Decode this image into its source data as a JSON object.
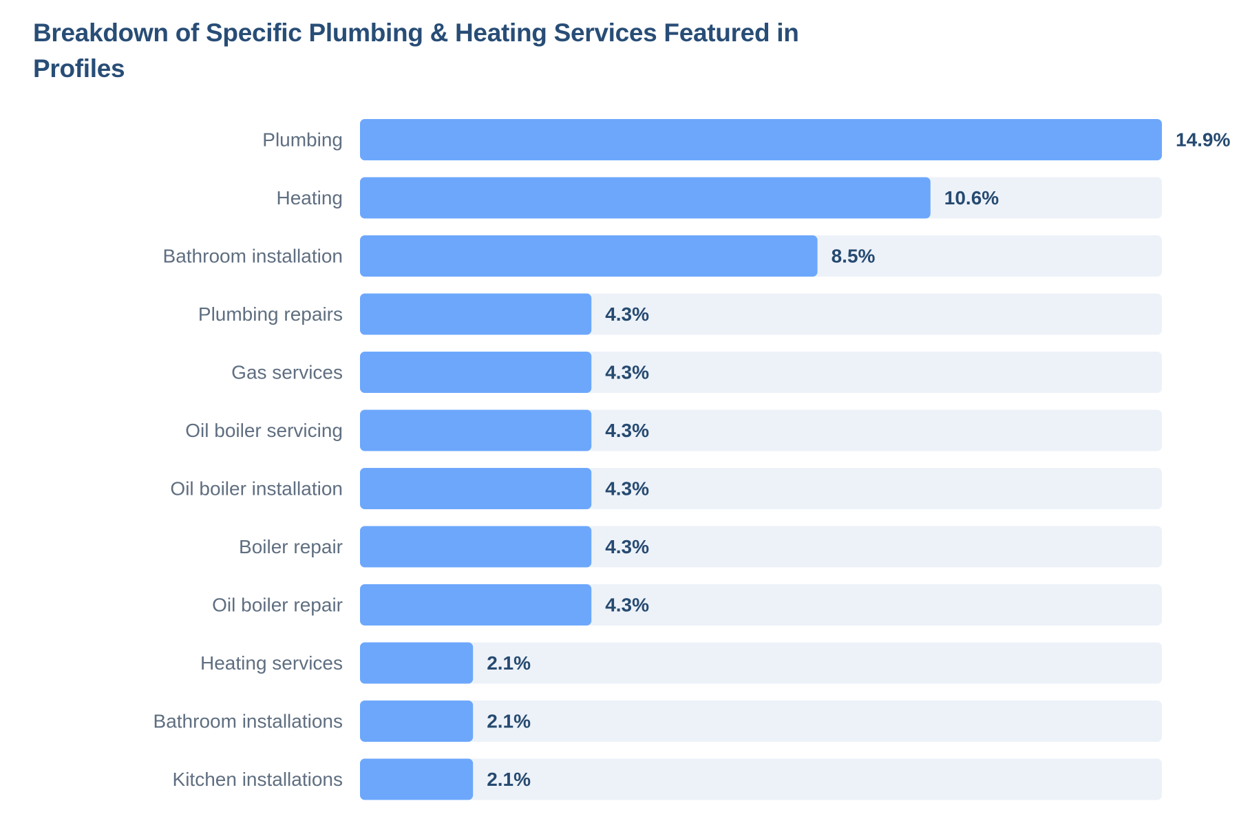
{
  "chart_data": {
    "type": "bar",
    "orientation": "horizontal",
    "title": "Breakdown of Specific Plumbing & Heating Services Featured in Profiles",
    "categories": [
      "Plumbing",
      "Heating",
      "Bathroom installation",
      "Plumbing repairs",
      "Gas services",
      "Oil boiler servicing",
      "Oil boiler installation",
      "Boiler repair",
      "Oil boiler repair",
      "Heating services",
      "Bathroom installations",
      "Kitchen installations"
    ],
    "values": [
      14.9,
      10.6,
      8.5,
      4.3,
      4.3,
      4.3,
      4.3,
      4.3,
      4.3,
      2.1,
      2.1,
      2.1
    ],
    "value_labels": [
      "14.9%",
      "10.6%",
      "8.5%",
      "4.3%",
      "4.3%",
      "4.3%",
      "4.3%",
      "4.3%",
      "4.3%",
      "2.1%",
      "2.1%",
      "2.1%"
    ],
    "xlim": [
      0,
      14.9
    ],
    "grid": false,
    "legend": "none",
    "colors": {
      "bar": "#6ca7fc",
      "track": "#edf2f9",
      "title": "#284d76",
      "category_label": "#5f6e80",
      "value_label": "#264a70"
    }
  }
}
